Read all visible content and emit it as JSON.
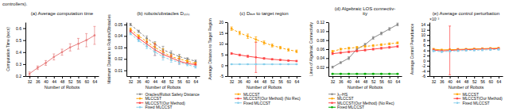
{
  "annotations": [
    "controllers)."
  ],
  "chart_data": [
    {
      "type": "line",
      "title": "(a) Average computation time",
      "xlabel": "Number of Robots",
      "ylabel": "Computation Time (secs)",
      "x": [
        32,
        36,
        40,
        44,
        48,
        52,
        56,
        60,
        64
      ],
      "xlim": [
        30,
        66
      ],
      "xticks": [
        32,
        36,
        40,
        44,
        48,
        52,
        56,
        60,
        64
      ],
      "ylim": [
        0.2,
        0.65
      ],
      "yticks": [
        0.2,
        0.3,
        0.4,
        0.5,
        0.6
      ],
      "grid": false,
      "color": "#e88080",
      "line_style": "solid",
      "marker": "circle",
      "values": [
        0.22,
        0.27,
        0.31,
        0.36,
        0.4,
        0.44,
        0.47,
        0.5,
        0.54
      ],
      "errors": [
        0.015,
        0.015,
        0.02,
        0.025,
        0.025,
        0.03,
        0.045,
        0.055,
        0.075
      ]
    },
    {
      "type": "line",
      "title": "(b) robots/obstacles Dₘᵢₙ",
      "xlabel": "Number of Robots",
      "ylabel": "Minimum Distance to Robots/Obstacles",
      "x": [
        32,
        36,
        40,
        44,
        48,
        52,
        56,
        60,
        64
      ],
      "xlim": [
        30,
        66
      ],
      "xticks": [
        32,
        36,
        40,
        44,
        48,
        52,
        56,
        60,
        64
      ],
      "ylim": [
        0.005,
        0.052
      ],
      "yticks": [
        0.01,
        0.02,
        0.03,
        0.04,
        0.05
      ],
      "grid": false,
      "legend": "upper right",
      "marker": "circle",
      "series": [
        {
          "name": "Oracles/Robot Safety Distance",
          "color": "#888888",
          "line_style": "dashed",
          "values": [
            0.05,
            0.044,
            0.038,
            0.033,
            0.028,
            0.025,
            0.022,
            0.02,
            0.018
          ],
          "errors": [
            0.001,
            0.001,
            0.002,
            0.002,
            0.003,
            0.002,
            0.002,
            0.001,
            0.001
          ]
        },
        {
          "name": "MLCCST",
          "color": "#FFA500",
          "line_style": "dashed",
          "values": [
            0.046,
            0.04,
            0.035,
            0.03,
            0.026,
            0.022,
            0.02,
            0.018,
            0.016
          ],
          "errors": [
            0.001,
            0.001,
            0.002,
            0.004,
            0.003,
            0.002,
            0.002,
            0.001,
            0.001
          ]
        },
        {
          "name": "MLCCST(Our Method)",
          "color": "#FF4444",
          "line_style": "solid",
          "values": [
            0.044,
            0.038,
            0.033,
            0.028,
            0.024,
            0.021,
            0.018,
            0.016,
            0.015
          ],
          "errors": [
            0.001,
            0.001,
            0.002,
            0.005,
            0.003,
            0.002,
            0.002,
            0.001,
            0.001
          ]
        },
        {
          "name": "Fixed MLCCST",
          "color": "#87CEEB",
          "line_style": "dashed",
          "values": [
            0.042,
            0.036,
            0.031,
            0.026,
            0.022,
            0.019,
            0.017,
            0.015,
            0.013
          ],
          "errors": [
            0.001,
            0.001,
            0.002,
            0.003,
            0.003,
            0.002,
            0.002,
            0.001,
            0.001
          ]
        }
      ]
    },
    {
      "type": "line",
      "title": "(c) Dₐᵥₑ to target region",
      "xlabel": "Number of Robots",
      "ylabel": "Average Distance to Target Region",
      "x": [
        32,
        36,
        40,
        44,
        48,
        52,
        56,
        60,
        64
      ],
      "xlim": [
        30,
        66
      ],
      "xticks": [
        32,
        36,
        40,
        44,
        48,
        52,
        56,
        60,
        64
      ],
      "ylim": [
        -5,
        20
      ],
      "yticks": [
        -5,
        0,
        5,
        10,
        15,
        20
      ],
      "grid": false,
      "legend": "upper right",
      "marker": "circle",
      "series": [
        {
          "name": "MLCCST",
          "color": "#FFA500",
          "line_style": "dashed",
          "values": [
            17.0,
            15.0,
            13.5,
            12.0,
            10.5,
            9.2,
            8.2,
            7.2,
            6.5
          ],
          "errors": [
            0.8,
            0.8,
            1.0,
            1.2,
            0.8,
            0.7,
            0.6,
            0.6,
            0.6
          ]
        },
        {
          "name": "MLCCST(Our Method) (No Rec)",
          "color": "#FF4444",
          "line_style": "solid",
          "values": [
            5.5,
            4.8,
            4.2,
            3.7,
            3.2,
            2.8,
            2.5,
            2.2,
            2.0
          ],
          "errors": [
            0.4,
            0.4,
            0.5,
            7.0,
            0.4,
            0.3,
            0.3,
            0.3,
            0.3
          ]
        },
        {
          "name": "Fixed MLCCST",
          "color": "#87CEEB",
          "line_style": "solid",
          "values": [
            0.5,
            0.5,
            0.5,
            0.5,
            0.5,
            0.5,
            0.5,
            0.5,
            0.5
          ],
          "errors": [
            0.05,
            0.05,
            0.05,
            0.05,
            0.05,
            0.05,
            0.05,
            0.05,
            0.05
          ]
        }
      ]
    },
    {
      "type": "line",
      "title": "(d) Algebraic LOS connectiv-\nity",
      "xlabel": "Number of Robots",
      "ylabel": "Lines of Algebraic Connectivity",
      "x": [
        32,
        36,
        40,
        44,
        48,
        52,
        56,
        60,
        64
      ],
      "xlim": [
        30,
        66
      ],
      "xticks": [
        32,
        36,
        40,
        44,
        48,
        52,
        56,
        60,
        64
      ],
      "ylim": [
        0,
        0.12
      ],
      "yticks": [
        0.02,
        0.04,
        0.06,
        0.08,
        {
          "value": 0.1,
          "label": "0.10"
        },
        0.12
      ],
      "grid": false,
      "legend": "upper left",
      "marker": "circle",
      "series": [
        {
          "name": "λ₂-HS",
          "color": "#888888",
          "line_style": "solid",
          "values": [
            0.02,
            0.03,
            0.04,
            0.06,
            0.07,
            0.085,
            0.095,
            0.105,
            0.115
          ],
          "errors": [
            0.002,
            0.002,
            0.003,
            0.003,
            0.003,
            0.003,
            0.003,
            0.003,
            0.003
          ]
        },
        {
          "name": "MLCCST",
          "color": "#FFA500",
          "line_style": "dashed",
          "values": [
            0.055,
            0.06,
            0.062,
            0.064,
            0.066,
            0.068,
            0.07,
            0.072,
            0.074
          ],
          "errors": [
            0.002,
            0.002,
            0.002,
            0.002,
            0.002,
            0.002,
            0.002,
            0.002,
            0.002
          ]
        },
        {
          "name": "MLCCST(Our Method) (No Rec)",
          "color": "#FF4444",
          "line_style": "solid",
          "values": [
            0.05,
            0.052,
            0.054,
            0.056,
            0.058,
            0.06,
            0.062,
            0.064,
            0.066
          ],
          "errors": [
            0.002,
            0.002,
            0.002,
            0.002,
            0.002,
            0.002,
            0.002,
            0.002,
            0.002
          ]
        },
        {
          "name": "Fixed MLCCST",
          "color": "#00AA00",
          "line_style": "solid",
          "values": [
            0.005,
            0.005,
            0.005,
            0.005,
            0.005,
            0.005,
            0.005,
            0.005,
            0.005
          ],
          "errors": [
            0.001,
            0.001,
            0.001,
            0.001,
            0.001,
            0.001,
            0.001,
            0.001,
            0.001
          ]
        }
      ]
    },
    {
      "type": "line",
      "title": "(e) Average control perturbation",
      "xlabel": "Number of Robots",
      "ylabel": "Average Control Perturbance",
      "annotations": [
        "×10⁻³"
      ],
      "x": [
        32,
        36,
        40,
        44,
        48,
        52,
        56,
        60,
        64
      ],
      "xlim": [
        30,
        66
      ],
      "xticks": [
        32,
        36,
        40,
        44,
        48,
        52,
        56,
        60,
        64
      ],
      "ylim": [
        -6,
        15
      ],
      "yticks": [
        -6,
        -4,
        -2,
        0,
        2,
        4,
        6,
        8,
        10,
        12,
        14
      ],
      "grid": false,
      "legend": "lower right",
      "marker": "circle",
      "series": [
        {
          "name": "MLCCST",
          "color": "#FFA500",
          "line_style": "solid",
          "values": [
            4.5,
            4.2,
            4.3,
            4.4,
            4.5,
            4.6,
            4.7,
            4.8,
            4.9
          ],
          "errors": [
            0.3,
            0.3,
            0.4,
            0.4,
            0.3,
            0.3,
            0.3,
            0.3,
            0.3
          ]
        },
        {
          "name": "MLCCST(Our Method)",
          "color": "#FF4444",
          "line_style": "solid",
          "values": [
            4.2,
            3.8,
            4.0,
            4.2,
            4.3,
            4.4,
            4.5,
            4.6,
            4.7
          ],
          "errors": [
            0.3,
            0.3,
            9.5,
            0.4,
            0.3,
            0.3,
            0.3,
            0.3,
            0.3
          ]
        },
        {
          "name": "Fixed MLCCST",
          "color": "#87CEEB",
          "line_style": "dashed",
          "values": [
            3.8,
            3.5,
            3.7,
            3.9,
            4.0,
            4.1,
            4.2,
            4.3,
            4.4
          ],
          "errors": [
            0.3,
            0.3,
            0.3,
            0.3,
            0.3,
            0.3,
            0.3,
            0.3,
            0.3
          ]
        }
      ]
    }
  ]
}
